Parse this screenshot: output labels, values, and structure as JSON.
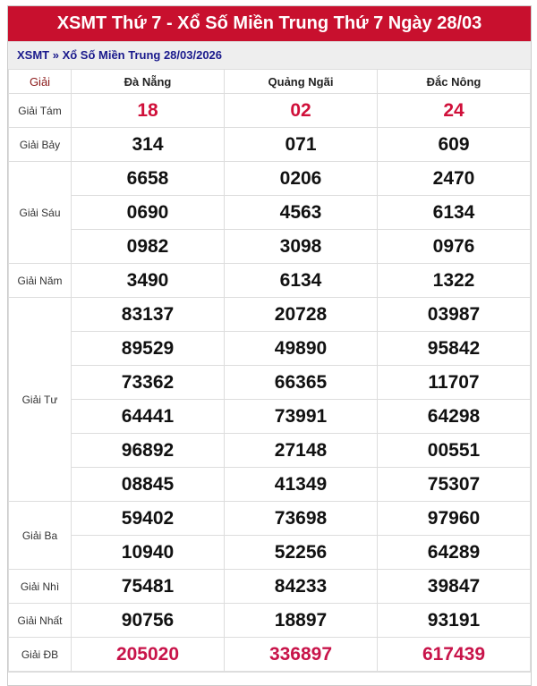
{
  "title": "XSMT Thứ 7 - Xổ Số Miền Trung Thứ 7 Ngày 28/03",
  "breadcrumb": "XSMT » Xổ Số Miền Trung 28/03/2026",
  "headers": [
    "Giải",
    "Đà Nẵng",
    "Quảng Ngãi",
    "Đắc Nông"
  ],
  "colors": {
    "header_bg": "#c8102e",
    "breadcrumb": "#1a1a8c",
    "highlight": "#d0103a"
  },
  "prizes": [
    {
      "label": "Giải Tám",
      "rows": [
        [
          "18",
          "02",
          "24"
        ]
      ]
    },
    {
      "label": "Giải Bảy",
      "rows": [
        [
          "314",
          "071",
          "609"
        ]
      ]
    },
    {
      "label": "Giải Sáu",
      "rows": [
        [
          "6658",
          "0206",
          "2470"
        ],
        [
          "0690",
          "4563",
          "6134"
        ],
        [
          "0982",
          "3098",
          "0976"
        ]
      ]
    },
    {
      "label": "Giải Năm",
      "rows": [
        [
          "3490",
          "6134",
          "1322"
        ]
      ]
    },
    {
      "label": "Giải Tư",
      "rows": [
        [
          "83137",
          "20728",
          "03987"
        ],
        [
          "89529",
          "49890",
          "95842"
        ],
        [
          "73362",
          "66365",
          "11707"
        ],
        [
          "64441",
          "73991",
          "64298"
        ],
        [
          "96892",
          "27148",
          "00551"
        ],
        [
          "08845",
          "41349",
          "75307"
        ]
      ]
    },
    {
      "label": "Giải Ba",
      "rows": [
        [
          "59402",
          "73698",
          "97960"
        ],
        [
          "10940",
          "52256",
          "64289"
        ]
      ]
    },
    {
      "label": "Giải Nhì",
      "rows": [
        [
          "75481",
          "84233",
          "39847"
        ]
      ]
    },
    {
      "label": "Giải Nhất",
      "rows": [
        [
          "90756",
          "18897",
          "93191"
        ]
      ]
    },
    {
      "label": "Giải ĐB",
      "rows": [
        [
          "205020",
          "336897",
          "617439"
        ]
      ]
    }
  ]
}
